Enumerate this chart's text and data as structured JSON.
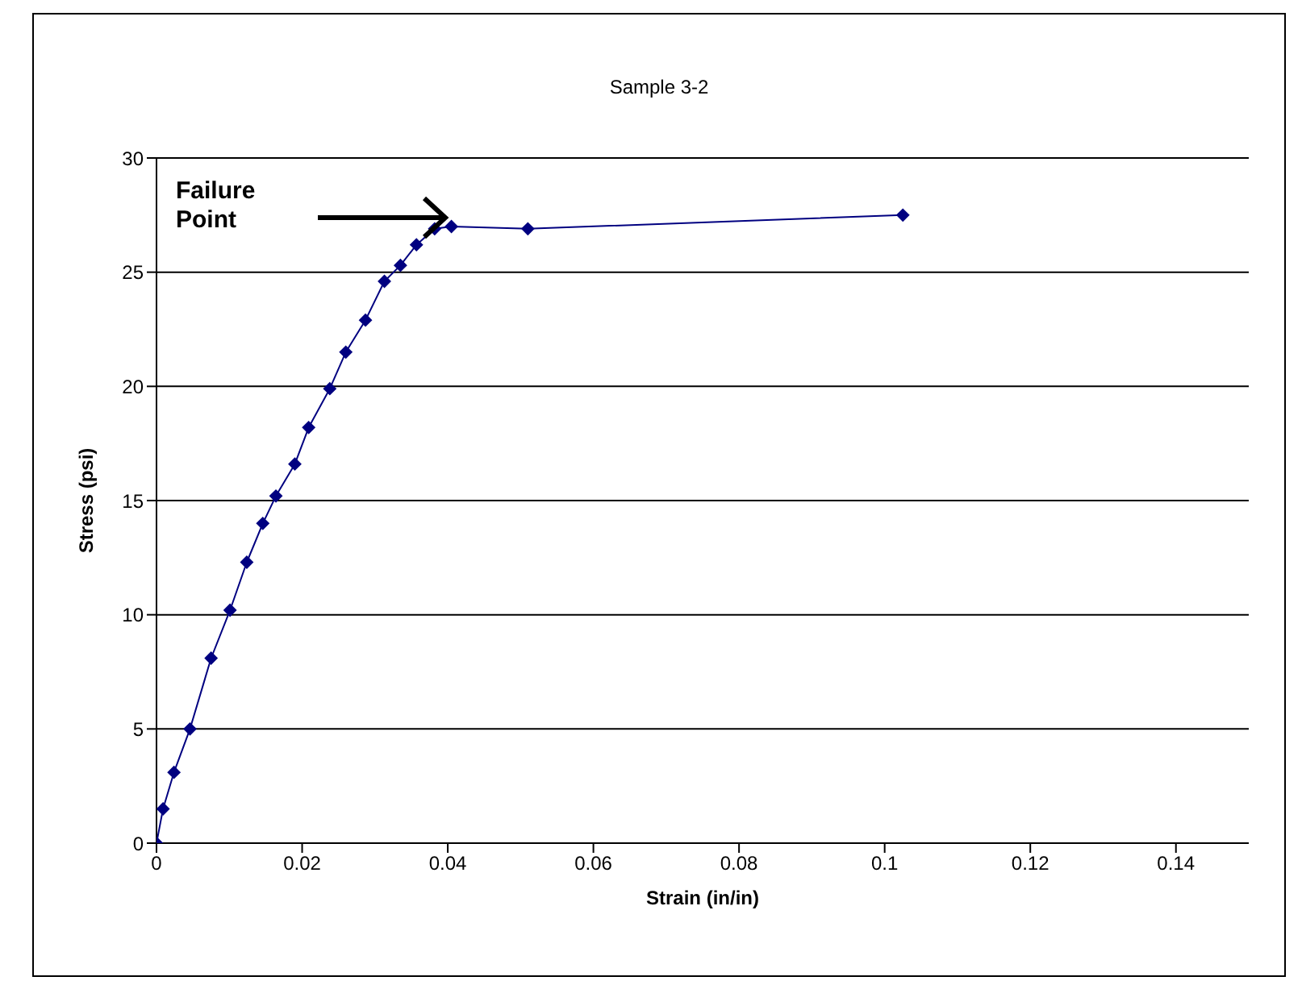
{
  "chart_data": {
    "type": "line",
    "title": "Sample 3-2",
    "xlabel": "Strain (in/in)",
    "ylabel": "Stress (psi)",
    "xlim": [
      0,
      0.15
    ],
    "xticks": [
      0,
      0.02,
      0.04,
      0.06,
      0.08,
      0.1,
      0.12,
      0.14
    ],
    "ylim": [
      0,
      30
    ],
    "yticks": [
      0,
      5,
      10,
      15,
      20,
      25,
      30
    ],
    "grid": "y",
    "marker": "diamond",
    "line_style": "solid",
    "annotations": [
      "Failure Point"
    ],
    "series": [
      {
        "color": "#000080",
        "x": [
          0,
          0.0009,
          0.0024,
          0.0046,
          0.0075,
          0.0101,
          0.0124,
          0.0146,
          0.0164,
          0.019,
          0.0209,
          0.0238,
          0.026,
          0.0287,
          0.0313,
          0.0335,
          0.0357,
          0.0382,
          0.0405,
          0.051,
          0.1025
        ],
        "values": [
          0,
          1.5,
          3.1,
          5.0,
          8.1,
          10.2,
          12.3,
          14.0,
          15.2,
          16.6,
          18.2,
          19.9,
          21.5,
          22.9,
          24.6,
          25.3,
          26.2,
          26.9,
          27.0,
          26.9,
          27.5
        ]
      }
    ]
  }
}
